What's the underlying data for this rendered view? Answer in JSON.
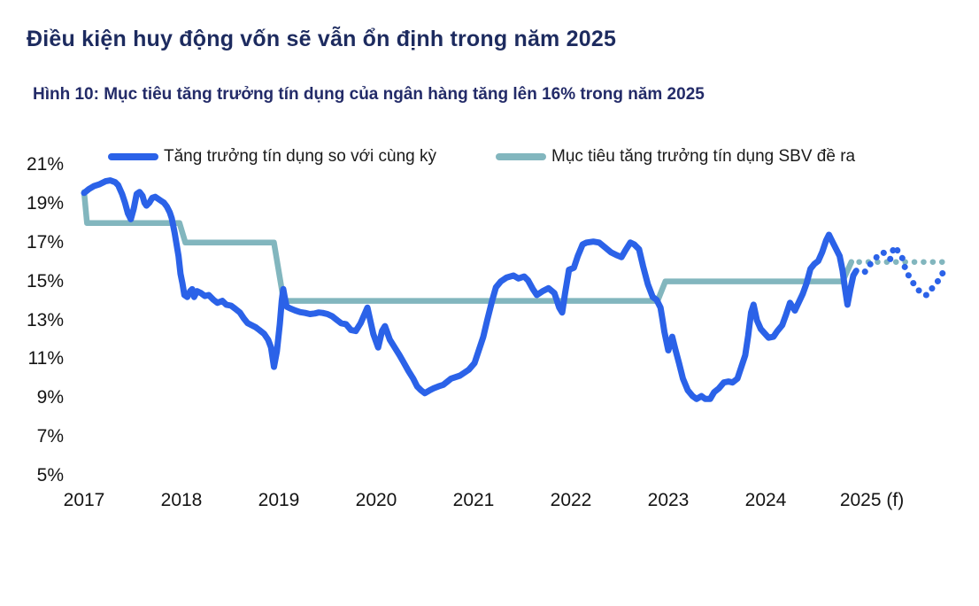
{
  "header": {
    "title": "Điều kiện huy động vốn sẽ vẫn ổn định trong năm 2025",
    "caption": "Hình 10: Mục tiêu tăng trưởng tín dụng của ngân hàng tăng lên 16% trong năm 2025"
  },
  "colors": {
    "title_text": "#1d2b5f",
    "caption_text": "#232b68",
    "credit_line": "#2b62e8",
    "target_line": "#82b6be",
    "tick_text": "#141414",
    "background": "#ffffff"
  },
  "chart_data": {
    "type": "line",
    "title": "",
    "xlabel": "",
    "ylabel": "",
    "ylim": [
      5,
      21
    ],
    "xlim": [
      2016.95,
      2025.95
    ],
    "grid": false,
    "legend_position": "top",
    "yticks": [
      "21%",
      "19%",
      "17%",
      "15%",
      "13%",
      "11%",
      "9%",
      "7%",
      "5%"
    ],
    "xticks": [
      "2017",
      "2018",
      "2019",
      "2020",
      "2021",
      "2022",
      "2023",
      "2024",
      "2025 (f)"
    ],
    "legend": [
      {
        "label": "Tăng trưởng tín dụng so với cùng kỳ",
        "color": "#2b62e8"
      },
      {
        "label": "Mục tiêu tăng trưởng tín dụng SBV đề ra",
        "color": "#82b6be"
      }
    ],
    "series": [
      {
        "name": "Mục tiêu tăng trưởng tín dụng SBV đề ra",
        "style": "solid",
        "color": "#82b6be",
        "width": 6.5,
        "points": [
          [
            2017.0,
            19.6
          ],
          [
            2017.03,
            18.0
          ],
          [
            2017.98,
            18.0
          ],
          [
            2018.04,
            17.0
          ],
          [
            2018.95,
            17.0
          ],
          [
            2019.05,
            14.0
          ],
          [
            2022.89,
            14.0
          ],
          [
            2022.97,
            15.0
          ],
          [
            2024.79,
            15.0
          ],
          [
            2024.88,
            16.0
          ]
        ]
      },
      {
        "name": "Mục tiêu tăng trưởng tín dụng SBV đề ra",
        "style": "dotted",
        "color": "#82b6be",
        "width": 6.5,
        "points": [
          [
            2024.96,
            16.0
          ],
          [
            2025.85,
            16.0
          ]
        ]
      },
      {
        "name": "Tăng trưởng tín dụng so với cùng kỳ",
        "style": "solid",
        "color": "#2b62e8",
        "width": 7,
        "points": [
          [
            2017.0,
            19.55
          ],
          [
            2017.05,
            19.75
          ],
          [
            2017.1,
            19.9
          ],
          [
            2017.16,
            20.0
          ],
          [
            2017.22,
            20.15
          ],
          [
            2017.27,
            20.2
          ],
          [
            2017.32,
            20.1
          ],
          [
            2017.35,
            19.95
          ],
          [
            2017.39,
            19.5
          ],
          [
            2017.42,
            19.05
          ],
          [
            2017.45,
            18.5
          ],
          [
            2017.48,
            18.2
          ],
          [
            2017.51,
            18.75
          ],
          [
            2017.54,
            19.5
          ],
          [
            2017.57,
            19.6
          ],
          [
            2017.6,
            19.4
          ],
          [
            2017.62,
            19.05
          ],
          [
            2017.64,
            18.9
          ],
          [
            2017.67,
            19.05
          ],
          [
            2017.7,
            19.3
          ],
          [
            2017.73,
            19.35
          ],
          [
            2017.76,
            19.25
          ],
          [
            2017.79,
            19.15
          ],
          [
            2017.82,
            19.05
          ],
          [
            2017.85,
            18.85
          ],
          [
            2017.88,
            18.55
          ],
          [
            2017.9,
            18.25
          ],
          [
            2017.93,
            17.5
          ],
          [
            2017.95,
            16.9
          ],
          [
            2017.97,
            16.3
          ],
          [
            2017.99,
            15.4
          ],
          [
            2018.01,
            14.9
          ],
          [
            2018.03,
            14.3
          ],
          [
            2018.06,
            14.2
          ],
          [
            2018.09,
            14.5
          ],
          [
            2018.11,
            14.6
          ],
          [
            2018.13,
            14.2
          ],
          [
            2018.16,
            14.5
          ],
          [
            2018.2,
            14.4
          ],
          [
            2018.24,
            14.25
          ],
          [
            2018.28,
            14.3
          ],
          [
            2018.33,
            14.05
          ],
          [
            2018.37,
            13.9
          ],
          [
            2018.42,
            14.0
          ],
          [
            2018.46,
            13.8
          ],
          [
            2018.51,
            13.75
          ],
          [
            2018.55,
            13.6
          ],
          [
            2018.6,
            13.4
          ],
          [
            2018.64,
            13.1
          ],
          [
            2018.68,
            12.85
          ],
          [
            2018.72,
            12.75
          ],
          [
            2018.76,
            12.65
          ],
          [
            2018.8,
            12.5
          ],
          [
            2018.85,
            12.3
          ],
          [
            2018.89,
            12.0
          ],
          [
            2018.92,
            11.6
          ],
          [
            2018.95,
            10.6
          ],
          [
            2018.98,
            11.4
          ],
          [
            2019.01,
            12.8
          ],
          [
            2019.03,
            14.0
          ],
          [
            2019.045,
            14.6
          ],
          [
            2019.06,
            14.2
          ],
          [
            2019.08,
            13.7
          ],
          [
            2019.12,
            13.6
          ],
          [
            2019.17,
            13.5
          ],
          [
            2019.22,
            13.42
          ],
          [
            2019.27,
            13.38
          ],
          [
            2019.32,
            13.32
          ],
          [
            2019.37,
            13.35
          ],
          [
            2019.41,
            13.4
          ],
          [
            2019.45,
            13.38
          ],
          [
            2019.5,
            13.32
          ],
          [
            2019.55,
            13.2
          ],
          [
            2019.6,
            13.0
          ],
          [
            2019.64,
            12.85
          ],
          [
            2019.69,
            12.8
          ],
          [
            2019.74,
            12.5
          ],
          [
            2019.79,
            12.45
          ],
          [
            2019.84,
            12.85
          ],
          [
            2019.91,
            13.65
          ],
          [
            2019.97,
            12.3
          ],
          [
            2020.02,
            11.6
          ],
          [
            2020.06,
            12.45
          ],
          [
            2020.09,
            12.7
          ],
          [
            2020.14,
            12.0
          ],
          [
            2020.19,
            11.6
          ],
          [
            2020.24,
            11.2
          ],
          [
            2020.28,
            10.85
          ],
          [
            2020.33,
            10.4
          ],
          [
            2020.38,
            10.0
          ],
          [
            2020.42,
            9.6
          ],
          [
            2020.46,
            9.4
          ],
          [
            2020.5,
            9.25
          ],
          [
            2020.55,
            9.4
          ],
          [
            2020.59,
            9.5
          ],
          [
            2020.64,
            9.6
          ],
          [
            2020.69,
            9.68
          ],
          [
            2020.77,
            10.0
          ],
          [
            2020.86,
            10.15
          ],
          [
            2020.95,
            10.45
          ],
          [
            2021.01,
            10.8
          ],
          [
            2021.05,
            11.4
          ],
          [
            2021.1,
            12.15
          ],
          [
            2021.14,
            13.0
          ],
          [
            2021.19,
            14.0
          ],
          [
            2021.23,
            14.7
          ],
          [
            2021.28,
            15.0
          ],
          [
            2021.34,
            15.2
          ],
          [
            2021.41,
            15.3
          ],
          [
            2021.46,
            15.15
          ],
          [
            2021.52,
            15.25
          ],
          [
            2021.56,
            15.05
          ],
          [
            2021.61,
            14.6
          ],
          [
            2021.65,
            14.3
          ],
          [
            2021.71,
            14.5
          ],
          [
            2021.77,
            14.65
          ],
          [
            2021.83,
            14.4
          ],
          [
            2021.88,
            13.65
          ],
          [
            2021.91,
            13.4
          ],
          [
            2021.94,
            14.4
          ],
          [
            2021.98,
            15.6
          ],
          [
            2022.03,
            15.7
          ],
          [
            2022.07,
            16.3
          ],
          [
            2022.12,
            16.9
          ],
          [
            2022.16,
            17.0
          ],
          [
            2022.23,
            17.05
          ],
          [
            2022.29,
            17.0
          ],
          [
            2022.35,
            16.75
          ],
          [
            2022.41,
            16.5
          ],
          [
            2022.47,
            16.35
          ],
          [
            2022.52,
            16.25
          ],
          [
            2022.56,
            16.6
          ],
          [
            2022.61,
            17.0
          ],
          [
            2022.65,
            16.9
          ],
          [
            2022.7,
            16.65
          ],
          [
            2022.74,
            15.8
          ],
          [
            2022.79,
            14.85
          ],
          [
            2022.84,
            14.2
          ],
          [
            2022.88,
            14.05
          ],
          [
            2022.92,
            13.65
          ],
          [
            2022.94,
            13.05
          ],
          [
            2022.96,
            12.4
          ],
          [
            2023.0,
            11.45
          ],
          [
            2023.04,
            12.15
          ],
          [
            2023.07,
            11.55
          ],
          [
            2023.11,
            10.8
          ],
          [
            2023.15,
            10.0
          ],
          [
            2023.2,
            9.4
          ],
          [
            2023.25,
            9.1
          ],
          [
            2023.29,
            8.95
          ],
          [
            2023.34,
            9.1
          ],
          [
            2023.38,
            8.95
          ],
          [
            2023.43,
            8.95
          ],
          [
            2023.47,
            9.3
          ],
          [
            2023.52,
            9.5
          ],
          [
            2023.57,
            9.8
          ],
          [
            2023.62,
            9.85
          ],
          [
            2023.66,
            9.8
          ],
          [
            2023.71,
            10.0
          ],
          [
            2023.75,
            10.6
          ],
          [
            2023.79,
            11.2
          ],
          [
            2023.82,
            12.2
          ],
          [
            2023.85,
            13.4
          ],
          [
            2023.875,
            13.8
          ],
          [
            2023.91,
            13.0
          ],
          [
            2023.95,
            12.55
          ],
          [
            2024.03,
            12.1
          ],
          [
            2024.08,
            12.15
          ],
          [
            2024.12,
            12.45
          ],
          [
            2024.17,
            12.75
          ],
          [
            2024.21,
            13.3
          ],
          [
            2024.25,
            13.9
          ],
          [
            2024.3,
            13.5
          ],
          [
            2024.38,
            14.35
          ],
          [
            2024.42,
            14.9
          ],
          [
            2024.46,
            15.65
          ],
          [
            2024.5,
            15.9
          ],
          [
            2024.54,
            16.05
          ],
          [
            2024.58,
            16.5
          ],
          [
            2024.62,
            17.1
          ],
          [
            2024.65,
            17.4
          ],
          [
            2024.69,
            17.0
          ],
          [
            2024.72,
            16.7
          ],
          [
            2024.76,
            16.3
          ],
          [
            2024.79,
            15.55
          ],
          [
            2024.81,
            14.8
          ],
          [
            2024.84,
            13.8
          ],
          [
            2024.87,
            14.6
          ],
          [
            2024.9,
            15.3
          ],
          [
            2024.93,
            15.55
          ]
        ]
      },
      {
        "name": "Tăng trưởng tín dụng so với cùng kỳ",
        "style": "dotted",
        "color": "#2b62e8",
        "width": 7,
        "points": [
          [
            2025.02,
            15.5
          ],
          [
            2025.06,
            15.8
          ],
          [
            2025.11,
            16.1
          ],
          [
            2025.15,
            16.3
          ],
          [
            2025.2,
            16.5
          ],
          [
            2025.24,
            16.4
          ],
          [
            2025.28,
            16.15
          ],
          [
            2025.32,
            16.8
          ],
          [
            2025.36,
            16.55
          ],
          [
            2025.4,
            16.25
          ],
          [
            2025.44,
            15.55
          ],
          [
            2025.48,
            15.2
          ],
          [
            2025.53,
            14.8
          ],
          [
            2025.57,
            14.55
          ],
          [
            2025.62,
            14.3
          ],
          [
            2025.66,
            14.3
          ],
          [
            2025.71,
            14.65
          ],
          [
            2025.76,
            14.95
          ],
          [
            2025.8,
            15.25
          ],
          [
            2025.84,
            15.65
          ]
        ]
      }
    ]
  }
}
